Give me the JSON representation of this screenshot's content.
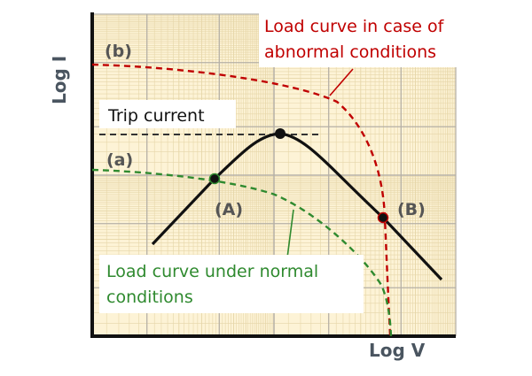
{
  "axes": {
    "x_label": "Log V",
    "y_label": "Log I"
  },
  "labels": {
    "trip_current": "Trip current",
    "abnormal_curve": [
      "Load curve in case of",
      "abnormal conditions"
    ],
    "normal_curve": [
      "Load curve under normal",
      "conditions"
    ],
    "point_a": "(A)",
    "point_b": "(B)",
    "curve_a": "(a)",
    "curve_b": "(b)"
  },
  "colors": {
    "grid_background": "#fdf3d6",
    "grid_minor": "#e6d6a8",
    "grid_major": "#b5b0a6",
    "axis": "#111111",
    "device_curve": "#111111",
    "trip_line": "#333333",
    "abnormal_curve": "#c00000",
    "normal_curve": "#2f8a2f",
    "point_label": "#555555",
    "axis_label": "#4a5560"
  }
}
